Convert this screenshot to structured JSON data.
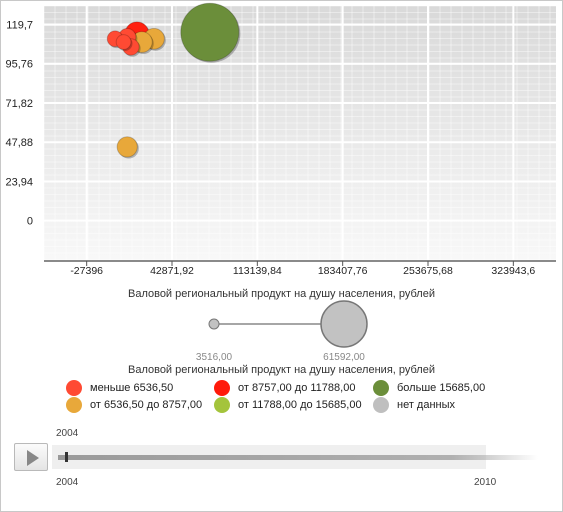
{
  "chart_data": {
    "type": "scatter",
    "title": "",
    "xlabel": "Валовой региональный продукт на душу населения, рублей",
    "ylabel": "",
    "x_ticks": [
      "-27396",
      "42871,92",
      "113139,84",
      "183407,76",
      "253675,68",
      "323943,6"
    ],
    "x_tick_values": [
      -27396,
      42871.92,
      113139.84,
      183407.76,
      253675.68,
      323943.6
    ],
    "y_ticks": [
      "0",
      "23,94",
      "47,88",
      "71,82",
      "95,76",
      "119,7"
    ],
    "y_tick_values": [
      0,
      23.94,
      47.88,
      71.82,
      95.76,
      119.7
    ],
    "xlim": [
      -62530,
      359077
    ],
    "ylim": [
      -24,
      131
    ],
    "grid": true,
    "points": [
      {
        "x": 74000,
        "y": 115,
        "size": 61592,
        "color": "#6b8e3a"
      },
      {
        "x": 14000,
        "y": 114,
        "size": 10500,
        "color": "#ff2010"
      },
      {
        "x": 28000,
        "y": 111,
        "size": 8000,
        "color": "#e8a83a"
      },
      {
        "x": 18000,
        "y": 109,
        "size": 8000,
        "color": "#e8a83a"
      },
      {
        "x": 6000,
        "y": 112,
        "size": 5500,
        "color": "#ff4a33"
      },
      {
        "x": -4000,
        "y": 111,
        "size": 4500,
        "color": "#ff4a33"
      },
      {
        "x": 9000,
        "y": 106,
        "size": 5000,
        "color": "#ff4a33"
      },
      {
        "x": 3000,
        "y": 109,
        "size": 4000,
        "color": "#ff4a33"
      },
      {
        "x": 6000,
        "y": 45,
        "size": 7500,
        "color": "#e8a83a"
      }
    ]
  },
  "size_legend": {
    "title": "Валовой региональный продукт на душу населения, рублей",
    "min_label": "3516,00",
    "max_label": "61592,00"
  },
  "color_legend": {
    "items": [
      {
        "label": "меньше 6536,50",
        "color": "#ff4a33"
      },
      {
        "label": "от 6536,50 до 8757,00",
        "color": "#e8a83a"
      },
      {
        "label": "от 8757,00 до 11788,00",
        "color": "#ff1a0a"
      },
      {
        "label": "от 11788,00 до 15685,00",
        "color": "#a4c43c"
      },
      {
        "label": "больше 15685,00",
        "color": "#6b8e3a"
      },
      {
        "label": "нет данных",
        "color": "#bfbfbf"
      }
    ]
  },
  "timeline": {
    "current": "2004",
    "start": "2004",
    "end": "2010",
    "progress": 0.0
  }
}
